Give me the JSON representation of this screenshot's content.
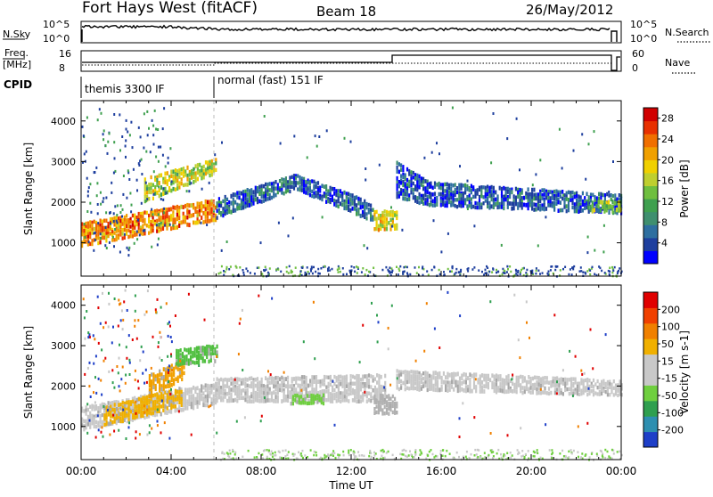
{
  "header": {
    "station": "Fort Hays West (fitACF)",
    "beam": "Beam 18",
    "date": "26/May/2012"
  },
  "noise_panel": {
    "left_label": "N.Sky",
    "right_label": "N.Search",
    "left_ticks": [
      "10^5",
      "10^0"
    ],
    "right_ticks": [
      "10^5",
      "10^0"
    ]
  },
  "freq_panel": {
    "left_label": "Freq.",
    "left_unit": "[MHz]",
    "left_ticks": [
      "16",
      "8"
    ],
    "right_label": "Nave",
    "right_ticks": [
      "60",
      "0"
    ]
  },
  "cpid_panel": {
    "label": "CPID",
    "modes": [
      {
        "name": "themis 3300 IF",
        "start_hour": 0
      },
      {
        "name": "normal (fast) 151 IF",
        "start_hour": 6
      }
    ]
  },
  "chart_data": [
    {
      "type": "heatmap",
      "name": "power",
      "xlabel": "",
      "ylabel": "Slant Range [km]",
      "xlim": [
        0,
        24
      ],
      "ylim": [
        180,
        4500
      ],
      "yticks": [
        "1000",
        "2000",
        "3000",
        "4000"
      ],
      "colorbar_label": "Power [dB]",
      "colorbar_ticks": [
        "4",
        "8",
        "12",
        "16",
        "20",
        "24",
        "28"
      ],
      "colorbar_colors": [
        "#0000ff",
        "#1e3f9e",
        "#2e6fa0",
        "#3f8f6f",
        "#3fa04f",
        "#6fbf3f",
        "#bfcf2f",
        "#f0d000",
        "#f0a000",
        "#f06f00",
        "#e83000",
        "#d00000"
      ],
      "bands": [
        {
          "x0": 0.0,
          "x1": 6.0,
          "y0": 900,
          "y1": 1500,
          "y0_end": 1550,
          "y1_end": 2100,
          "level": 0.78
        },
        {
          "x0": 2.8,
          "x1": 6.0,
          "y0": 2000,
          "y1": 2600,
          "y0_end": 2700,
          "y1_end": 3100,
          "level": 0.55
        },
        {
          "x0": 6.0,
          "x1": 9.5,
          "y0": 1600,
          "y1": 2100,
          "y0_end": 2300,
          "y1_end": 2700,
          "level": 0.15
        },
        {
          "x0": 9.5,
          "x1": 13.0,
          "y0": 2300,
          "y1": 2700,
          "y0_end": 1500,
          "y1_end": 2000,
          "level": 0.15
        },
        {
          "x0": 13.0,
          "x1": 14.0,
          "y0": 1300,
          "y1": 1800,
          "y0_end": 1300,
          "y1_end": 1800,
          "level": 0.6
        },
        {
          "x0": 14.0,
          "x1": 15.5,
          "y0": 2100,
          "y1": 3000,
          "y0_end": 1900,
          "y1_end": 2500,
          "level": 0.12
        },
        {
          "x0": 15.5,
          "x1": 24.0,
          "y0": 1900,
          "y1": 2500,
          "y0_end": 1700,
          "y1_end": 2200,
          "level": 0.13
        },
        {
          "x0": 22.5,
          "x1": 24.0,
          "y0": 1750,
          "y1": 2050,
          "y0_end": 1750,
          "y1_end": 2050,
          "level": 0.45
        }
      ]
    },
    {
      "type": "heatmap",
      "name": "velocity",
      "xlabel": "Time UT",
      "ylabel": "Slant Range [km]",
      "xlim": [
        0,
        24
      ],
      "ylim": [
        180,
        4500
      ],
      "xticks": [
        "00:00",
        "04:00",
        "08:00",
        "12:00",
        "16:00",
        "20:00",
        "00:00"
      ],
      "yticks": [
        "1000",
        "2000",
        "3000",
        "4000"
      ],
      "colorbar_label": "Velocity [m s-1]",
      "colorbar_ticks": [
        "200",
        "100",
        "50",
        "15",
        "-15",
        "-50",
        "-100",
        "-200"
      ],
      "colorbar_colors": [
        "#1e3fc8",
        "#2e8fb0",
        "#2f9f4f",
        "#6fcf3f",
        "#c8c8c8",
        "#c8c8c8",
        "#f0b000",
        "#f08000",
        "#f04000",
        "#e00000"
      ],
      "bands": [
        {
          "x0": 0.0,
          "x1": 6.0,
          "y0": 900,
          "y1": 1500,
          "y0_end": 1550,
          "y1_end": 2100,
          "color": "#c8c8c8"
        },
        {
          "x0": 1.0,
          "x1": 4.5,
          "y0": 1000,
          "y1": 1500,
          "y0_end": 1500,
          "y1_end": 2000,
          "color": "#f0b000"
        },
        {
          "x0": 3.0,
          "x1": 4.6,
          "y0": 1700,
          "y1": 2300,
          "y0_end": 2200,
          "y1_end": 2700,
          "color": "#f0a000"
        },
        {
          "x0": 4.2,
          "x1": 6.0,
          "y0": 2500,
          "y1": 2900,
          "y0_end": 2600,
          "y1_end": 3050,
          "color": "#4fbf3f"
        },
        {
          "x0": 6.0,
          "x1": 13.5,
          "y0": 1600,
          "y1": 2200,
          "y0_end": 1600,
          "y1_end": 2300,
          "color": "#c8c8c8"
        },
        {
          "x0": 9.2,
          "x1": 10.8,
          "y0": 1550,
          "y1": 1800,
          "y0_end": 1550,
          "y1_end": 1800,
          "color": "#6fcf3f"
        },
        {
          "x0": 13.0,
          "x1": 14.0,
          "y0": 1300,
          "y1": 1800,
          "y0_end": 1300,
          "y1_end": 1800,
          "color": "#b0b0b0"
        },
        {
          "x0": 14.0,
          "x1": 24.0,
          "y0": 1900,
          "y1": 2400,
          "y0_end": 1750,
          "y1_end": 2150,
          "color": "#c8c8c8"
        }
      ]
    }
  ]
}
